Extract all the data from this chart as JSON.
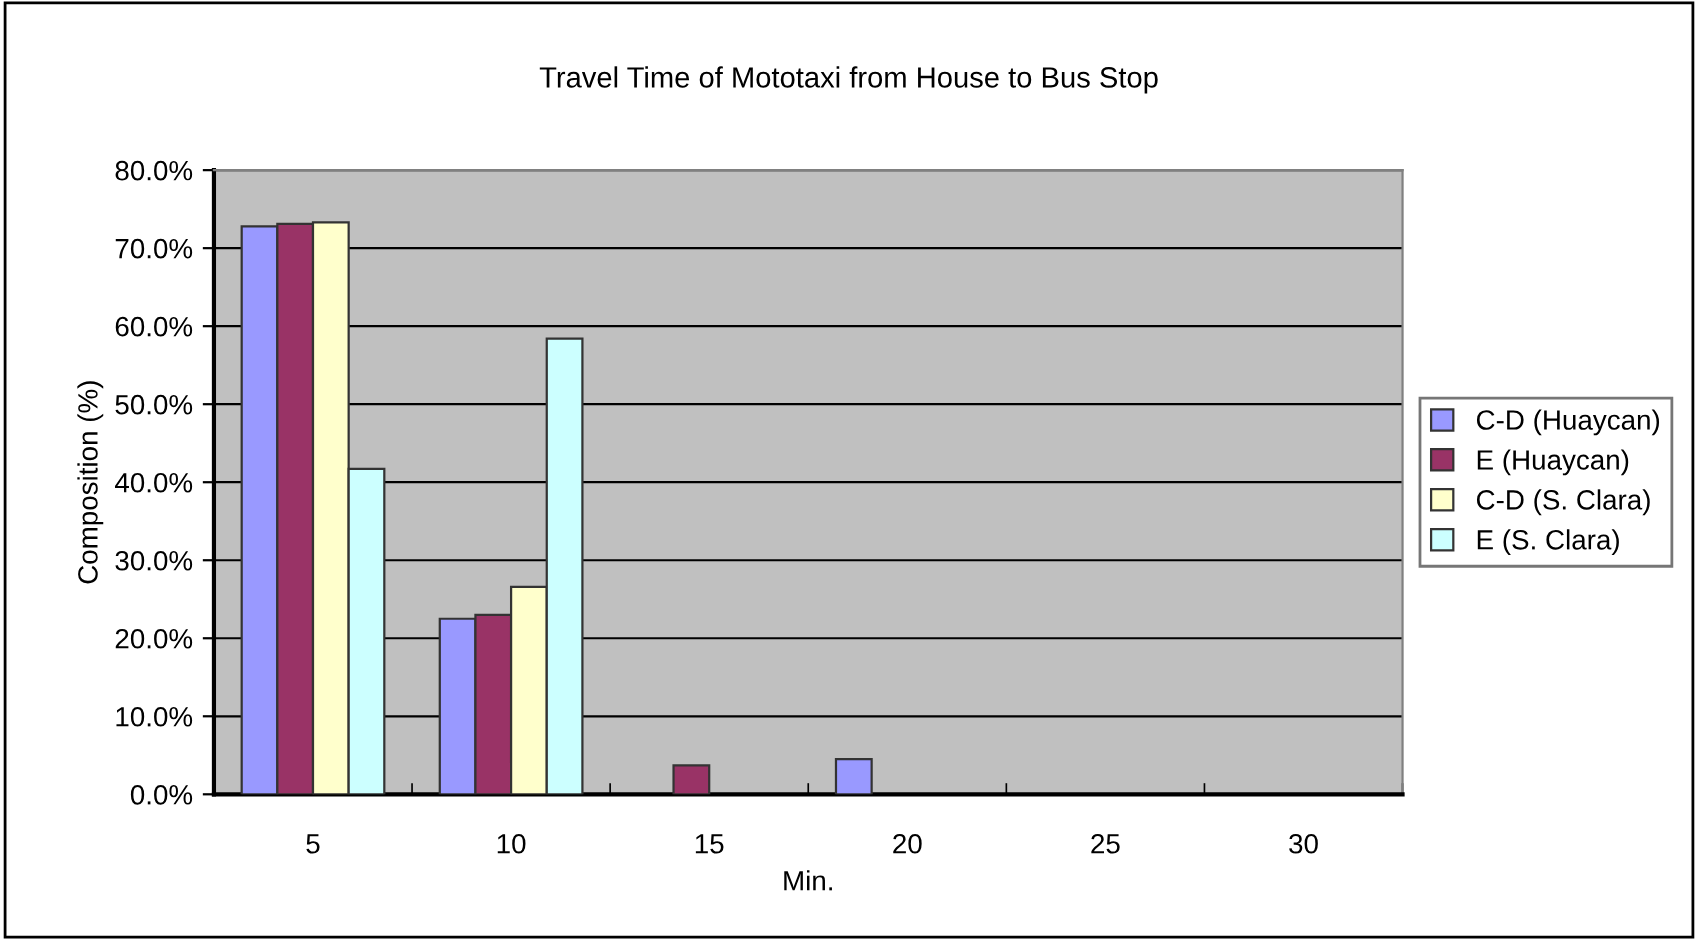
{
  "chart_data": {
    "type": "bar",
    "title": "Travel Time of Mototaxi from House to Bus Stop",
    "xlabel": "Min.",
    "ylabel": "Composition (%)",
    "categories": [
      "5",
      "10",
      "15",
      "20",
      "25",
      "30"
    ],
    "series": [
      {
        "name": "C-D (Huaycan)",
        "color": "#9999ff",
        "values": [
          72.8,
          22.5,
          null,
          4.5,
          null,
          null
        ]
      },
      {
        "name": "E (Huaycan)",
        "color": "#993366",
        "values": [
          73.1,
          23.0,
          3.7,
          null,
          null,
          null
        ]
      },
      {
        "name": "C-D (S. Clara)",
        "color": "#ffffcc",
        "values": [
          73.3,
          26.6,
          null,
          null,
          null,
          null
        ]
      },
      {
        "name": "E (S. Clara)",
        "color": "#ccffff",
        "values": [
          41.7,
          58.4,
          null,
          null,
          null,
          null
        ]
      }
    ],
    "ylim": [
      0,
      80
    ],
    "yticks": [
      {
        "value": 0,
        "label": "0.0%"
      },
      {
        "value": 10,
        "label": "10.0%"
      },
      {
        "value": 20,
        "label": "20.0%"
      },
      {
        "value": 30,
        "label": "30.0%"
      },
      {
        "value": 40,
        "label": "40.0%"
      },
      {
        "value": 50,
        "label": "50.0%"
      },
      {
        "value": 60,
        "label": "60.0%"
      },
      {
        "value": 70,
        "label": "70.0%"
      },
      {
        "value": 80,
        "label": "80.0%"
      }
    ],
    "grid": "y",
    "legend": "right"
  }
}
